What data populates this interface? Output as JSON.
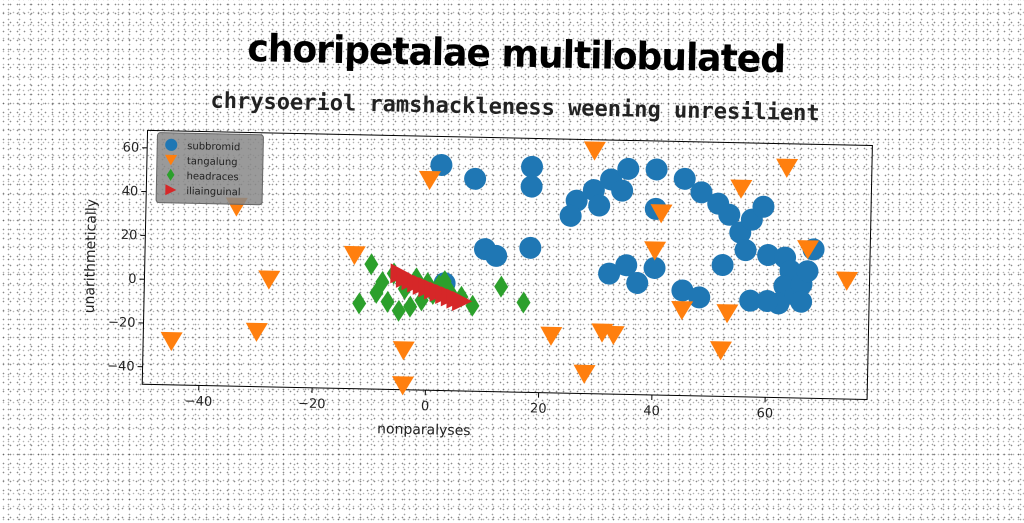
{
  "chart_data": {
    "type": "scatter",
    "title": "choripetalae multilobulated",
    "subtitle": "chrysoeriol ramshackleness weening unresilient",
    "xlabel": "nonparalyses",
    "ylabel": "unarithmetically",
    "xlim": [
      -50,
      78
    ],
    "ylim": [
      -48,
      68
    ],
    "xticks": [
      -40,
      -20,
      0,
      20,
      40,
      60
    ],
    "yticks": [
      -40,
      -20,
      0,
      20,
      40,
      60
    ],
    "grid": false,
    "legend_position": "top-left",
    "series": [
      {
        "name": "subbromid",
        "marker": "circle",
        "color": "#1f77b4",
        "points": [
          [
            2,
            55
          ],
          [
            8,
            49
          ],
          [
            18,
            55
          ],
          [
            18,
            46
          ],
          [
            3,
            1
          ],
          [
            10,
            17
          ],
          [
            12,
            14
          ],
          [
            18,
            18
          ],
          [
            26,
            40
          ],
          [
            25,
            33
          ],
          [
            29,
            45
          ],
          [
            30,
            38
          ],
          [
            32,
            50
          ],
          [
            34,
            45
          ],
          [
            35,
            55
          ],
          [
            40,
            55
          ],
          [
            40,
            37
          ],
          [
            45,
            51
          ],
          [
            48,
            45
          ],
          [
            51,
            40
          ],
          [
            53,
            35
          ],
          [
            55,
            27
          ],
          [
            57,
            33
          ],
          [
            59,
            39
          ],
          [
            56,
            19
          ],
          [
            52,
            12
          ],
          [
            60,
            17
          ],
          [
            63,
            16
          ],
          [
            64,
            10
          ],
          [
            63,
            3
          ],
          [
            62,
            -5
          ],
          [
            65,
            -1
          ],
          [
            66,
            4
          ],
          [
            68,
            20
          ],
          [
            67,
            10
          ],
          [
            66,
            -4
          ],
          [
            57,
            -4
          ],
          [
            60,
            -4
          ],
          [
            40,
            10
          ],
          [
            45,
            0
          ],
          [
            48,
            -3
          ],
          [
            37,
            3
          ],
          [
            35,
            11
          ],
          [
            32,
            7
          ]
        ]
      },
      {
        "name": "tangalung",
        "marker": "triangle-down",
        "color": "#ff7f0e",
        "points": [
          [
            -34,
            34
          ],
          [
            -45,
            -28
          ],
          [
            -28,
            1
          ],
          [
            -30,
            -23
          ],
          [
            -13,
            13
          ],
          [
            0,
            48
          ],
          [
            -4,
            -30
          ],
          [
            -4,
            -46
          ],
          [
            22,
            -22
          ],
          [
            28,
            -39
          ],
          [
            29,
            63
          ],
          [
            31,
            -20
          ],
          [
            33,
            -21
          ],
          [
            40,
            18
          ],
          [
            41,
            35
          ],
          [
            45,
            -9
          ],
          [
            52,
            -27
          ],
          [
            53,
            -10
          ],
          [
            55,
            47
          ],
          [
            63,
            57
          ],
          [
            67,
            20
          ],
          [
            74,
            6
          ]
        ]
      },
      {
        "name": "headraces",
        "marker": "thin-diamond",
        "color": "#2ca02c",
        "points": [
          [
            -10,
            9
          ],
          [
            -12,
            -9
          ],
          [
            -9,
            -4
          ],
          [
            -8,
            1
          ],
          [
            -7,
            -8
          ],
          [
            -6,
            5
          ],
          [
            -5,
            -12
          ],
          [
            -4,
            -2
          ],
          [
            -3,
            -10
          ],
          [
            -2,
            3
          ],
          [
            -1,
            -7
          ],
          [
            0,
            1
          ],
          [
            1,
            -4
          ],
          [
            2,
            0
          ],
          [
            3,
            2
          ],
          [
            4,
            -3
          ],
          [
            6,
            -5
          ],
          [
            8,
            -9
          ],
          [
            13,
            0
          ],
          [
            17,
            -7
          ]
        ]
      },
      {
        "name": "iliainguinal",
        "marker": "triangle-right",
        "color": "#d62728",
        "points": [
          [
            -5,
            5
          ],
          [
            -4,
            3
          ],
          [
            -3,
            2
          ],
          [
            -2,
            1
          ],
          [
            -1,
            0
          ],
          [
            0,
            -1
          ],
          [
            1,
            -2
          ],
          [
            2,
            -3
          ],
          [
            3,
            -4
          ],
          [
            4,
            -5
          ],
          [
            5,
            -6
          ],
          [
            6,
            -7
          ]
        ]
      }
    ]
  }
}
